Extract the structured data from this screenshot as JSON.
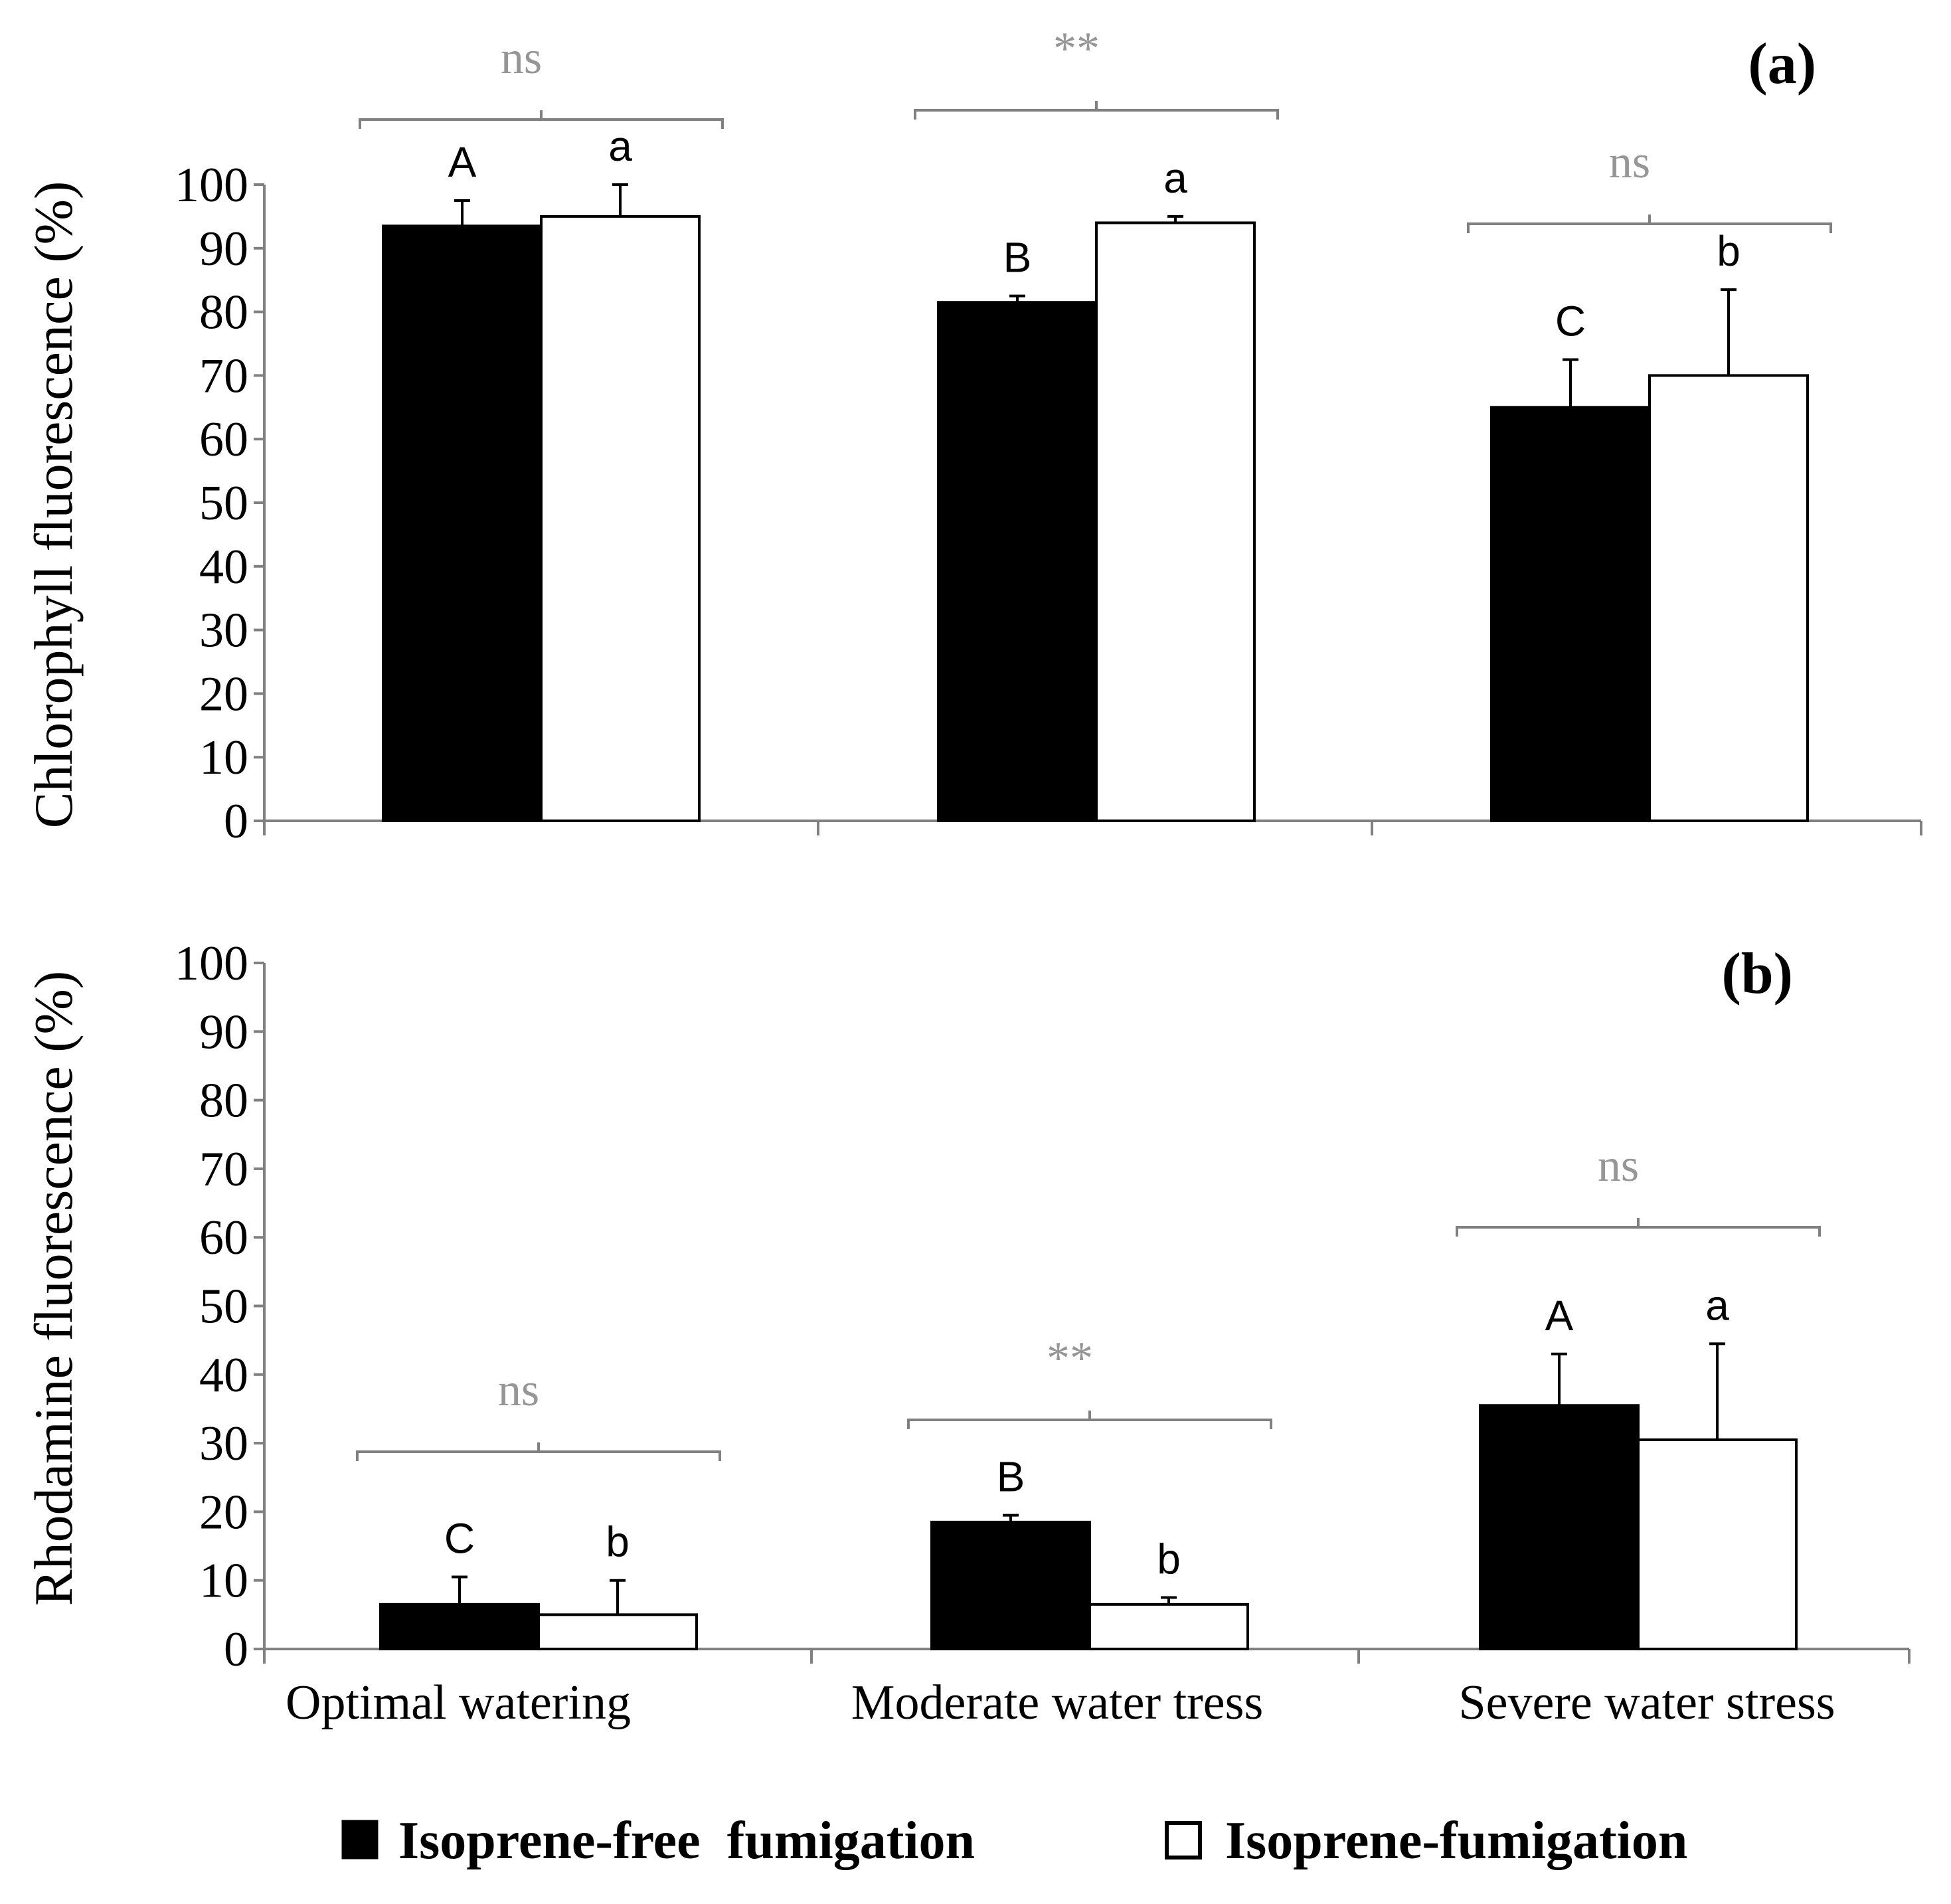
{
  "chart_data": [
    {
      "type": "bar",
      "panel": "(a)",
      "ylabel": "Chlorophyll  fluorescence (%)",
      "ylim": [
        0,
        100
      ],
      "yticks": [
        "0",
        "10",
        "20",
        "30",
        "40",
        "50",
        "60",
        "70",
        "80",
        "90",
        "100"
      ],
      "categories": [
        "Optimal watering",
        "Moderate water tress",
        "Severe water stress"
      ],
      "series": [
        {
          "name": "Isoprene-free  fumigation",
          "values": [
            93.5,
            81.5,
            65
          ],
          "errors": [
            4,
            1,
            7.5
          ],
          "letters": [
            "A",
            "B",
            "C"
          ],
          "color": "#000000"
        },
        {
          "name": "Isoprene-fumigation",
          "values": [
            95,
            94,
            70
          ],
          "errors": [
            5,
            1,
            13.5
          ],
          "letters": [
            "a",
            "a",
            "b"
          ],
          "color": "#ffffff"
        }
      ],
      "significance": [
        "ns",
        "**",
        "ns"
      ],
      "grid": false
    },
    {
      "type": "bar",
      "panel": "(b)",
      "ylabel": "Rhodamine  fluorescence  (%)",
      "ylim": [
        0,
        100
      ],
      "yticks": [
        "0",
        "10",
        "20",
        "30",
        "40",
        "50",
        "60",
        "70",
        "80",
        "90",
        "100"
      ],
      "categories": [
        "Optimal watering",
        "Moderate water tress",
        "Severe water stress"
      ],
      "series": [
        {
          "name": "Isoprene-free  fumigation",
          "values": [
            6.5,
            18.5,
            35.5
          ],
          "errors": [
            4,
            1,
            7.5
          ],
          "letters": [
            "C",
            "B",
            "A"
          ],
          "color": "#000000"
        },
        {
          "name": "Isoprene-fumigation",
          "values": [
            5,
            6.5,
            30.5
          ],
          "errors": [
            5,
            1,
            14
          ],
          "letters": [
            "b",
            "b",
            "a"
          ],
          "color": "#ffffff"
        }
      ],
      "significance": [
        "ns",
        "**",
        "ns"
      ],
      "grid": false
    }
  ],
  "legend": {
    "position": "bottom",
    "items": [
      {
        "label": "Isoprene-free  fumigation",
        "fill": "#000000"
      },
      {
        "label": "Isoprene-fumigation",
        "fill": "#ffffff"
      }
    ]
  },
  "colors": {
    "axis": "#808080",
    "significance": "#969696",
    "bar_edge": "#000000"
  }
}
